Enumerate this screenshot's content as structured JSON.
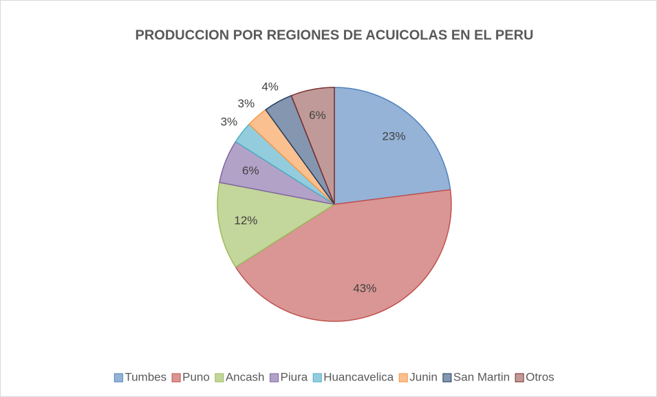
{
  "chart_data": {
    "type": "pie",
    "title": "PRODUCCION POR REGIONES DE ACUICOLAS EN EL PERU",
    "categories": [
      "Tumbes",
      "Puno",
      "Ancash",
      "Piura",
      "Huancavelica",
      "Junin",
      "San Martin",
      "Otros"
    ],
    "values": [
      23,
      43,
      12,
      6,
      3,
      3,
      4,
      6
    ],
    "value_labels": [
      "23%",
      "43%",
      "12%",
      "6%",
      "3%",
      "3%",
      "4%",
      "6%"
    ],
    "colors": [
      "#95b3d7",
      "#d99694",
      "#c3d69b",
      "#b3a2c7",
      "#93cddd",
      "#fac090",
      "#8496b0",
      "#c09a98"
    ],
    "legend": "bottom"
  }
}
